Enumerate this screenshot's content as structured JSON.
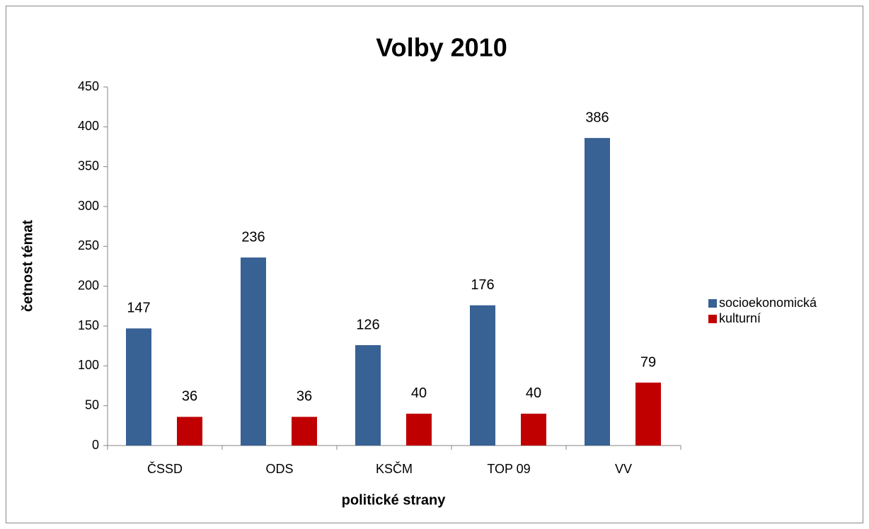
{
  "chart_data": {
    "type": "bar",
    "title": "Volby 2010",
    "x_label": "politické strany",
    "y_label": "četnost témat",
    "categories": [
      "ČSSD",
      "ODS",
      "KSČM",
      "TOP 09",
      "VV"
    ],
    "series": [
      {
        "name": "socioekonomická",
        "color": "#386194",
        "values": [
          147,
          236,
          126,
          176,
          386
        ]
      },
      {
        "name": "kulturní",
        "color": "#c00000",
        "values": [
          36,
          36,
          40,
          40,
          79
        ]
      }
    ],
    "ylim": [
      0,
      450
    ],
    "yticks": [
      0,
      50,
      100,
      150,
      200,
      250,
      300,
      350,
      400,
      450
    ],
    "grid": false,
    "legend": "right"
  }
}
